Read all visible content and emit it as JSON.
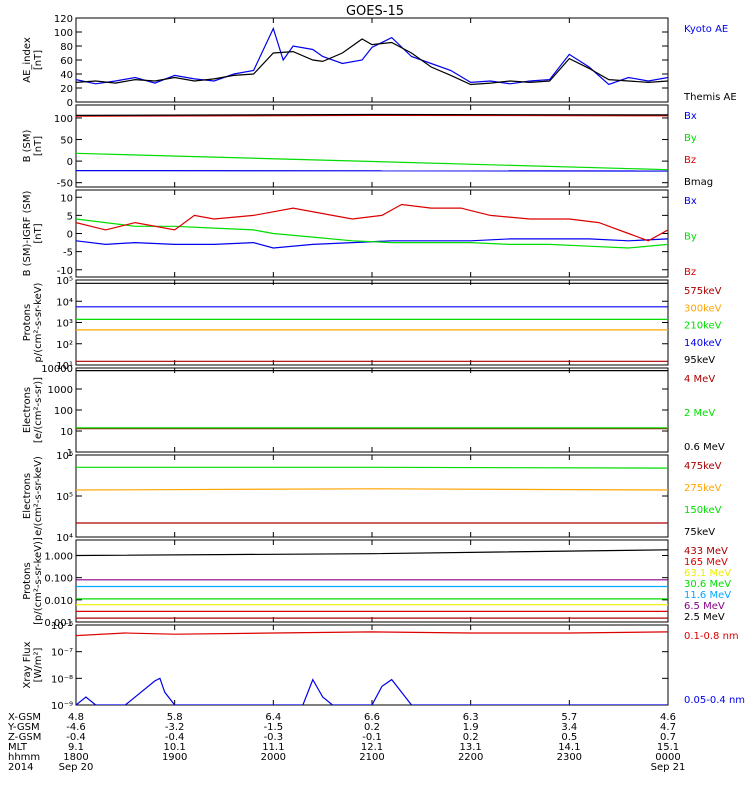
{
  "title": "GOES-15",
  "colors": {
    "black": "#000000",
    "blue": "#0000ee",
    "green": "#00dd00",
    "red": "#dd0000",
    "darkred": "#aa0000",
    "orange": "#ffa500",
    "yellow": "#eeee00",
    "cyan": "#00aaff",
    "purple": "#880088",
    "magenta": "#aa0066"
  },
  "chart_data": [
    {
      "type": "line",
      "ylabel_lines": [
        "AE_index",
        "[nT]"
      ],
      "ylim": [
        0,
        120
      ],
      "scale": "linear",
      "yticks": [
        {
          "v": 0,
          "label": "0"
        },
        {
          "v": 20,
          "label": "20"
        },
        {
          "v": 40,
          "label": "40"
        },
        {
          "v": 60,
          "label": "60"
        },
        {
          "v": 80,
          "label": "80"
        },
        {
          "v": 100,
          "label": "100"
        },
        {
          "v": 120,
          "label": "120"
        }
      ],
      "series": [
        {
          "name": "Kyoto AE",
          "color": "blue",
          "x": [
            0,
            0.2,
            0.4,
            0.6,
            0.8,
            1.0,
            1.2,
            1.4,
            1.6,
            1.8,
            2.0,
            2.1,
            2.2,
            2.4,
            2.5,
            2.7,
            2.9,
            3.0,
            3.2,
            3.4,
            3.6,
            3.8,
            4.0,
            4.2,
            4.4,
            4.6,
            4.8,
            5.0,
            5.2,
            5.4,
            5.6,
            5.8,
            6.0
          ],
          "values": [
            32,
            26,
            30,
            35,
            27,
            38,
            33,
            30,
            40,
            45,
            105,
            60,
            80,
            75,
            65,
            55,
            60,
            78,
            92,
            65,
            55,
            45,
            28,
            30,
            26,
            30,
            32,
            68,
            50,
            25,
            35,
            30,
            35
          ]
        },
        {
          "name": "Themis AE",
          "color": "black",
          "x": [
            0,
            0.2,
            0.4,
            0.6,
            0.8,
            1.0,
            1.2,
            1.4,
            1.6,
            1.8,
            2.0,
            2.2,
            2.4,
            2.5,
            2.7,
            2.9,
            3.0,
            3.2,
            3.4,
            3.6,
            3.8,
            4.0,
            4.2,
            4.4,
            4.6,
            4.8,
            5.0,
            5.2,
            5.4,
            5.6,
            5.8,
            6.0
          ],
          "values": [
            28,
            30,
            27,
            32,
            30,
            35,
            30,
            33,
            38,
            40,
            70,
            72,
            60,
            58,
            70,
            90,
            82,
            85,
            70,
            50,
            38,
            25,
            27,
            30,
            28,
            30,
            62,
            48,
            32,
            30,
            28,
            30
          ]
        }
      ]
    },
    {
      "type": "line",
      "ylabel_lines": [
        "B (SM)",
        "[nT]"
      ],
      "ylim": [
        -60,
        130
      ],
      "scale": "linear",
      "yticks": [
        {
          "v": -50,
          "label": "-50"
        },
        {
          "v": 0,
          "label": "0"
        },
        {
          "v": 50,
          "label": "50"
        },
        {
          "v": 100,
          "label": "100"
        }
      ],
      "series": [
        {
          "name": "Bx",
          "color": "blue",
          "x": [
            0,
            6
          ],
          "values": [
            -22,
            -23
          ]
        },
        {
          "name": "By",
          "color": "green",
          "x": [
            0,
            6
          ],
          "values": [
            18,
            -20
          ]
        },
        {
          "name": "Bz",
          "color": "red",
          "x": [
            0,
            3,
            6
          ],
          "values": [
            104,
            106,
            105
          ]
        },
        {
          "name": "Bmag",
          "color": "black",
          "x": [
            0,
            3,
            6
          ],
          "values": [
            106,
            108,
            107
          ]
        }
      ]
    },
    {
      "type": "line",
      "ylabel_lines": [
        "B (SM)-IGRF (SM)",
        "[nT]"
      ],
      "ylim": [
        -12,
        12
      ],
      "scale": "linear",
      "yticks": [
        {
          "v": -10,
          "label": "-10"
        },
        {
          "v": -5,
          "label": "-5"
        },
        {
          "v": 0,
          "label": "0"
        },
        {
          "v": 5,
          "label": "5"
        },
        {
          "v": 10,
          "label": "10"
        }
      ],
      "series": [
        {
          "name": "Bx",
          "color": "blue",
          "x": [
            0,
            0.3,
            0.6,
            1.0,
            1.4,
            1.8,
            2.0,
            2.4,
            2.8,
            3.2,
            3.6,
            4.0,
            4.4,
            4.8,
            5.2,
            5.6,
            6.0
          ],
          "values": [
            -2,
            -3,
            -2.5,
            -3,
            -3,
            -2.5,
            -4,
            -3,
            -2.5,
            -2,
            -2,
            -2,
            -1.5,
            -1.5,
            -1.5,
            -2,
            -1.5
          ]
        },
        {
          "name": "By",
          "color": "green",
          "x": [
            0,
            0.3,
            0.6,
            1.0,
            1.4,
            1.8,
            2.0,
            2.4,
            2.8,
            3.2,
            3.6,
            4.0,
            4.4,
            4.8,
            5.2,
            5.6,
            6.0
          ],
          "values": [
            4,
            3,
            2,
            2,
            1.5,
            1,
            0,
            -1,
            -2,
            -2.5,
            -2.5,
            -2.5,
            -3,
            -3,
            -3.5,
            -4,
            -3
          ]
        },
        {
          "name": "Bz",
          "color": "red",
          "x": [
            0,
            0.3,
            0.6,
            1.0,
            1.2,
            1.4,
            1.8,
            2.0,
            2.2,
            2.6,
            2.8,
            3.1,
            3.3,
            3.6,
            3.9,
            4.2,
            4.6,
            5.0,
            5.3,
            5.6,
            5.8,
            6.0
          ],
          "values": [
            3,
            1,
            3,
            1,
            5,
            4,
            5,
            6,
            7,
            5,
            4,
            5,
            8,
            7,
            7,
            5,
            4,
            4,
            3,
            0,
            -2,
            1
          ]
        }
      ]
    },
    {
      "type": "line",
      "ylabel_lines": [
        "Protons",
        "p/(cm²-s-sr-keV)"
      ],
      "ylim": [
        10,
        100000
      ],
      "scale": "log",
      "yticks": [
        {
          "v": 10,
          "label": "10¹"
        },
        {
          "v": 100,
          "label": "10²"
        },
        {
          "v": 1000,
          "label": "10³"
        },
        {
          "v": 10000,
          "label": "10⁴"
        },
        {
          "v": 100000,
          "label": "10⁵"
        }
      ],
      "series": [
        {
          "name": "575keV",
          "color": "darkred",
          "x": [
            0,
            6
          ],
          "values": [
            15,
            15
          ]
        },
        {
          "name": "300keV",
          "color": "orange",
          "x": [
            0,
            6
          ],
          "values": [
            450,
            450
          ]
        },
        {
          "name": "210keV",
          "color": "green",
          "x": [
            0,
            6
          ],
          "values": [
            1400,
            1400
          ]
        },
        {
          "name": "140keV",
          "color": "blue",
          "x": [
            0,
            6
          ],
          "values": [
            5500,
            5500
          ]
        },
        {
          "name": "95keV",
          "color": "black",
          "x": [
            0,
            6
          ],
          "values": [
            70000,
            70000
          ]
        }
      ]
    },
    {
      "type": "line",
      "ylabel_lines": [
        "Electrons",
        "[e/(cm²-s-sr)]"
      ],
      "ylim": [
        1,
        10000
      ],
      "scale": "log",
      "yticks": [
        {
          "v": 1,
          "label": "1"
        },
        {
          "v": 10,
          "label": "10"
        },
        {
          "v": 100,
          "label": "100"
        },
        {
          "v": 1000,
          "label": "1000"
        },
        {
          "v": 10000,
          "label": "10000"
        }
      ],
      "series": [
        {
          "name": "4 MeV",
          "color": "darkred",
          "x": [
            0,
            6
          ],
          "values": [
            13,
            13
          ]
        },
        {
          "name": "2 MeV",
          "color": "green",
          "x": [
            0,
            6
          ],
          "values": [
            14,
            14
          ]
        },
        {
          "name": "0.6 MeV",
          "color": "black",
          "x": [
            0,
            6
          ],
          "values": [
            7500,
            7500
          ]
        }
      ]
    },
    {
      "type": "line",
      "ylabel_lines": [
        "Electrons",
        "e/(cm²-s-sr-keV)"
      ],
      "ylim": [
        10000,
        1000000
      ],
      "scale": "log",
      "yticks": [
        {
          "v": 10000,
          "label": "10⁴"
        },
        {
          "v": 100000,
          "label": "10⁵"
        },
        {
          "v": 1000000,
          "label": "10⁶"
        }
      ],
      "series": [
        {
          "name": "475keV",
          "color": "darkred",
          "x": [
            0,
            3,
            6
          ],
          "values": [
            22000,
            22000,
            22000
          ]
        },
        {
          "name": "275keV",
          "color": "orange",
          "x": [
            0,
            3,
            6
          ],
          "values": [
            140000,
            150000,
            140000
          ]
        },
        {
          "name": "150keV",
          "color": "green",
          "x": [
            0,
            3,
            6
          ],
          "values": [
            500000,
            500000,
            480000
          ]
        },
        {
          "name": "75keV",
          "color": "black",
          "x": [
            0,
            6
          ],
          "values": [
            1100000,
            1100000
          ]
        }
      ]
    },
    {
      "type": "line",
      "ylabel_lines": [
        "Protons",
        "[p/(cm²-s-sr-keV)]"
      ],
      "ylim": [
        0.001,
        5
      ],
      "scale": "log",
      "yticks": [
        {
          "v": 0.001,
          "label": "0.001"
        },
        {
          "v": 0.01,
          "label": "0.010"
        },
        {
          "v": 0.1,
          "label": "0.100"
        },
        {
          "v": 1,
          "label": "1.000"
        }
      ],
      "series": [
        {
          "name": "433 MeV",
          "color": "darkred",
          "x": [
            0,
            6
          ],
          "values": [
            0.0015,
            0.0015
          ]
        },
        {
          "name": "165 MeV",
          "color": "red",
          "x": [
            0,
            6
          ],
          "values": [
            0.003,
            0.003
          ]
        },
        {
          "name": "63.1 MeV",
          "color": "yellow",
          "x": [
            0,
            6
          ],
          "values": [
            0.006,
            0.006
          ]
        },
        {
          "name": "30.6 MeV",
          "color": "green",
          "x": [
            0,
            6
          ],
          "values": [
            0.011,
            0.011
          ]
        },
        {
          "name": "11.6 MeV",
          "color": "cyan",
          "x": [
            0,
            6
          ],
          "values": [
            0.04,
            0.04
          ]
        },
        {
          "name": "6.5 MeV",
          "color": "purple",
          "x": [
            0,
            6
          ],
          "values": [
            0.08,
            0.08
          ]
        },
        {
          "name": "2.5 MeV",
          "color": "black",
          "x": [
            0,
            3,
            6
          ],
          "values": [
            1.0,
            1.2,
            1.8
          ]
        }
      ]
    },
    {
      "type": "line",
      "ylabel_lines": [
        "Xray Flux",
        "[W/m²]"
      ],
      "ylim": [
        1e-09,
        1e-06
      ],
      "scale": "log",
      "yticks": [
        {
          "v": 1e-09,
          "label": "10⁻⁹"
        },
        {
          "v": 1e-08,
          "label": "10⁻⁸"
        },
        {
          "v": 1e-07,
          "label": "10⁻⁷"
        },
        {
          "v": 1e-06,
          "label": "10⁻⁶"
        }
      ],
      "series": [
        {
          "name": "0.1-0.8 nm",
          "color": "red",
          "x": [
            0,
            0.5,
            1,
            2,
            3,
            4,
            5,
            6
          ],
          "values": [
            4e-07,
            5e-07,
            4.5e-07,
            5e-07,
            5.5e-07,
            5e-07,
            5e-07,
            5.5e-07
          ]
        },
        {
          "name": "0.05-0.4 nm",
          "color": "blue",
          "x": [
            0,
            0.1,
            0.2,
            0.3,
            0.5,
            0.8,
            0.85,
            0.9,
            1.0,
            1.5,
            2.3,
            2.4,
            2.5,
            2.6,
            3.0,
            3.1,
            3.2,
            3.3,
            3.4,
            4.0,
            5.0,
            6.0
          ],
          "values": [
            1e-09,
            2e-09,
            1e-09,
            1e-09,
            1e-09,
            8e-09,
            1e-08,
            3e-09,
            1e-09,
            1e-09,
            1e-09,
            9e-09,
            2e-09,
            1e-09,
            1e-09,
            5e-09,
            9e-09,
            3e-09,
            1e-09,
            1e-09,
            1e-09,
            1e-09
          ]
        }
      ]
    }
  ],
  "xaxis": {
    "ticks": [
      {
        "x": 0,
        "xgsm": "4.8",
        "ygsm": "-4.6",
        "zgsm": "-0.4",
        "mlt": "9.1",
        "hhmm": "1800",
        "date": "Sep 20"
      },
      {
        "x": 1,
        "xgsm": "5.8",
        "ygsm": "-3.2",
        "zgsm": "-0.4",
        "mlt": "10.1",
        "hhmm": "1900",
        "date": ""
      },
      {
        "x": 2,
        "xgsm": "6.4",
        "ygsm": "-1.5",
        "zgsm": "-0.3",
        "mlt": "11.1",
        "hhmm": "2000",
        "date": ""
      },
      {
        "x": 3,
        "xgsm": "6.6",
        "ygsm": "0.2",
        "zgsm": "-0.1",
        "mlt": "12.1",
        "hhmm": "2100",
        "date": ""
      },
      {
        "x": 4,
        "xgsm": "6.3",
        "ygsm": "1.9",
        "zgsm": "0.2",
        "mlt": "13.1",
        "hhmm": "2200",
        "date": ""
      },
      {
        "x": 5,
        "xgsm": "5.7",
        "ygsm": "3.4",
        "zgsm": "0.5",
        "mlt": "14.1",
        "hhmm": "2300",
        "date": ""
      },
      {
        "x": 6,
        "xgsm": "4.6",
        "ygsm": "4.7",
        "zgsm": "0.7",
        "mlt": "15.1",
        "hhmm": "0000",
        "date": "Sep 21"
      }
    ],
    "row_labels": [
      "X-GSM",
      "Y-GSM",
      "Z-GSM",
      "MLT",
      "hhmm",
      "2014"
    ]
  }
}
